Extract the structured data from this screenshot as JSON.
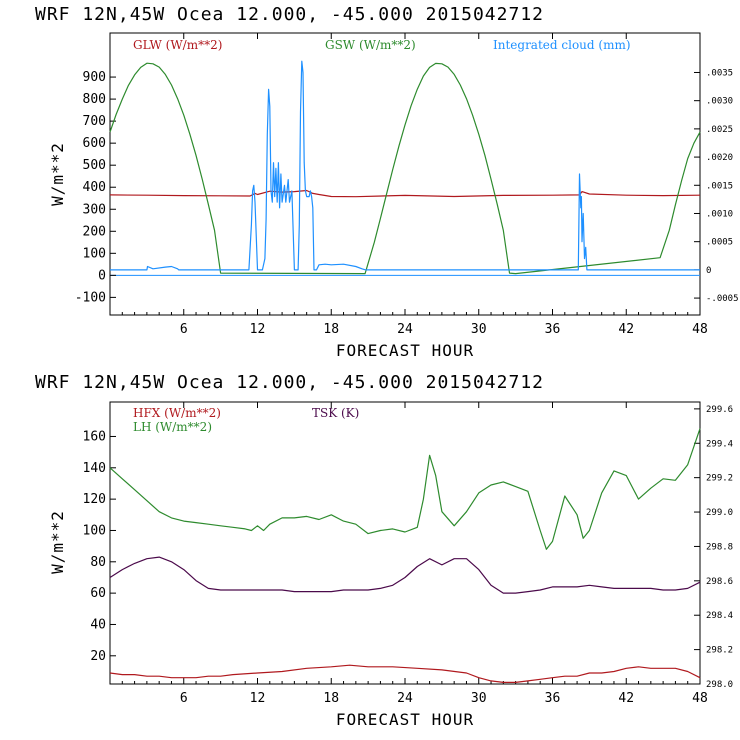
{
  "colors": {
    "red": "#b0191e",
    "green": "#2e8b2e",
    "blue": "#1e90ff",
    "purple": "#4b0a4b",
    "axis": "#000000"
  },
  "chart_data": [
    {
      "type": "line",
      "header": "WRF   12N,45W Ocea  12.000, -45.000  2015042712",
      "xlabel": "FORECAST HOUR",
      "ylabel": "W/m**2",
      "xlim": [
        0,
        48
      ],
      "ylim": [
        -180,
        1100
      ],
      "xticks": [
        "6",
        "12",
        "18",
        "24",
        "30",
        "36",
        "42",
        "48"
      ],
      "yticks": [
        "-100",
        "0",
        "100",
        "200",
        "300",
        "400",
        "500",
        "600",
        "700",
        "800",
        "900"
      ],
      "right_axis": {
        "ylim": [
          -0.0008,
          0.0042
        ],
        "ticks": [
          "-.0005",
          "0",
          ".0005",
          ".0010",
          ".0015",
          ".0020",
          ".0025",
          ".0030",
          ".0035"
        ]
      },
      "legend": [
        "GLW (W/m**2)",
        "GSW (W/m**2)",
        "Integrated cloud (mm)"
      ],
      "series": [
        {
          "name": "GLW (W/m**2)",
          "color": "red",
          "axis": "left",
          "x": [
            0,
            3,
            6,
            9,
            11.4,
            11.8,
            12,
            13,
            14,
            15,
            16,
            16.5,
            17,
            18,
            20,
            24,
            28,
            32,
            36,
            38.2,
            38.4,
            39,
            42,
            45,
            48
          ],
          "y": [
            365,
            364,
            362,
            361,
            360,
            372,
            367,
            382,
            378,
            380,
            385,
            372,
            367,
            358,
            357,
            363,
            358,
            363,
            364,
            365,
            380,
            369,
            364,
            362,
            364
          ]
        },
        {
          "name": "GSW (W/m**2)",
          "color": "green",
          "axis": "left",
          "x": [
            0,
            0.5,
            1,
            1.5,
            2,
            2.5,
            3,
            3.5,
            4,
            4.5,
            5,
            5.5,
            6,
            6.5,
            7,
            7.5,
            8,
            8.5,
            9,
            20.75,
            21.5,
            22,
            22.5,
            23,
            23.5,
            24,
            24.5,
            25,
            25.5,
            26,
            26.5,
            27,
            27.5,
            28,
            28.5,
            29,
            29.5,
            30,
            30.5,
            31,
            31.5,
            32,
            32.5,
            33,
            44.75,
            45.5,
            46,
            46.5,
            47,
            47.5,
            48
          ],
          "y": [
            650,
            730,
            800,
            862,
            910,
            944,
            963,
            960,
            945,
            912,
            864,
            802,
            727,
            640,
            545,
            437,
            323,
            205,
            10,
            8,
            150,
            258,
            370,
            480,
            586,
            683,
            770,
            845,
            905,
            944,
            962,
            960,
            945,
            912,
            864,
            802,
            727,
            640,
            545,
            437,
            323,
            205,
            10,
            8,
            80,
            205,
            320,
            430,
            530,
            600,
            650
          ]
        },
        {
          "name": "Integrated cloud (mm)",
          "color": "blue",
          "axis": "right",
          "x": [
            0,
            3,
            3.05,
            3.5,
            4.5,
            5,
            5.5,
            5.6,
            11.3,
            11.5,
            11.6,
            11.7,
            11.8,
            12,
            12.2,
            12.4,
            12.6,
            12.7,
            12.8,
            12.9,
            13,
            13.1,
            13.2,
            13.3,
            13.4,
            13.5,
            13.6,
            13.7,
            13.8,
            13.9,
            14,
            14.2,
            14.3,
            14.5,
            14.6,
            14.8,
            15,
            15.2,
            15.3,
            15.4,
            15.5,
            15.6,
            15.7,
            15.8,
            15.9,
            16,
            16.2,
            16.3,
            16.4,
            16.5,
            16.6,
            16.8,
            17,
            17.5,
            18,
            19,
            20,
            20.5,
            20.8,
            38.1,
            38.2,
            38.3,
            38.35,
            38.4,
            38.5,
            38.6,
            38.7,
            38.8,
            48
          ],
          "y": [
            0,
            0,
            6e-05,
            2e-05,
            5e-05,
            6e-05,
            2e-05,
            0,
            0,
            0.0008,
            0.0014,
            0.0015,
            0.0012,
            0,
            0,
            0,
            0.0002,
            0.0009,
            0.0024,
            0.0032,
            0.0029,
            0.0014,
            0.0012,
            0.0019,
            0.0013,
            0.0018,
            0.0012,
            0.0019,
            0.0011,
            0.0017,
            0.0012,
            0.0015,
            0.0012,
            0.0016,
            0.0012,
            0.0014,
            0,
            0,
            0,
            0.0008,
            0.0028,
            0.0037,
            0.0035,
            0.0019,
            0.0014,
            0.0013,
            0.0013,
            0.0014,
            0.0013,
            0.0011,
            0,
            0,
            9e-05,
            0.0001,
            9e-05,
            0.0001,
            6e-05,
            2e-05,
            0,
            0,
            0.0017,
            0.0011,
            0.0013,
            0.0005,
            0.001,
            0.0002,
            0.0004,
            0,
            0
          ]
        }
      ]
    },
    {
      "type": "line",
      "header": "WRF   12N,45W Ocea  12.000, -45.000  2015042712",
      "xlabel": "FORECAST HOUR",
      "ylabel": "W/m**2",
      "xlim": [
        0,
        48
      ],
      "ylim": [
        2,
        182
      ],
      "xticks": [
        "6",
        "12",
        "18",
        "24",
        "30",
        "36",
        "42",
        "48"
      ],
      "yticks": [
        "20",
        "40",
        "60",
        "80",
        "100",
        "120",
        "140",
        "160"
      ],
      "right_axis": {
        "ylim": [
          298.0,
          299.64
        ],
        "ticks": [
          "298.0",
          "298.2",
          "298.4",
          "298.6",
          "298.8",
          "299.0",
          "299.2",
          "299.4",
          "299.6"
        ]
      },
      "legend": [
        "HFX (W/m**2)",
        "LH (W/m**2)",
        "TSK (K)"
      ],
      "series": [
        {
          "name": "HFX (W/m**2)",
          "color": "red",
          "axis": "left",
          "x": [
            0,
            1,
            2,
            3,
            4,
            5,
            6,
            7,
            8,
            9,
            10,
            12,
            14,
            16,
            18,
            19.5,
            21,
            23,
            25,
            27,
            29,
            30,
            31,
            32,
            33,
            34,
            35,
            36,
            37,
            38,
            39,
            40,
            41,
            42,
            43,
            44,
            45,
            46,
            47,
            48
          ],
          "y": [
            9,
            8,
            8,
            7,
            7,
            6,
            6,
            6,
            7,
            7,
            8,
            9,
            10,
            12,
            13,
            14,
            13,
            13,
            12,
            11,
            9,
            6,
            4,
            3,
            3,
            4,
            5,
            6,
            7,
            7,
            9,
            9,
            10,
            12,
            13,
            12,
            12,
            12,
            10,
            6
          ]
        },
        {
          "name": "LH (W/m**2)",
          "color": "green",
          "axis": "left",
          "x": [
            0,
            1,
            2,
            3,
            4,
            5,
            6,
            7,
            8,
            9,
            10,
            11,
            11.5,
            12,
            12.5,
            13,
            14,
            15,
            16,
            17,
            18,
            19,
            20,
            21,
            22,
            23,
            24,
            25,
            25.5,
            26,
            26.5,
            27,
            28,
            29,
            30,
            31,
            32,
            33,
            34,
            35,
            35.5,
            36,
            37,
            38,
            38.5,
            39,
            40,
            41,
            42,
            43,
            44,
            45,
            46,
            47,
            48
          ],
          "y": [
            140,
            133,
            126,
            119,
            112,
            108,
            106,
            105,
            104,
            103,
            102,
            101,
            100,
            103,
            100,
            104,
            108,
            108,
            109,
            107,
            110,
            106,
            104,
            98,
            100,
            101,
            99,
            102,
            120,
            148,
            135,
            112,
            103,
            112,
            124,
            129,
            131,
            128,
            125,
            100,
            88,
            93,
            122,
            110,
            95,
            100,
            124,
            138,
            135,
            120,
            127,
            133,
            132,
            142,
            165
          ]
        },
        {
          "name": "TSK (K)",
          "color": "purple",
          "axis": "left",
          "x": [
            0,
            1,
            2,
            3,
            4,
            5,
            6,
            7,
            8,
            9,
            10,
            11,
            12,
            13,
            14,
            15,
            16,
            17,
            18,
            19,
            20,
            21,
            22,
            23,
            24,
            25,
            26,
            27,
            28,
            29,
            30,
            31,
            32,
            33,
            34,
            35,
            36,
            37,
            38,
            39,
            40,
            41,
            42,
            43,
            44,
            45,
            46,
            47,
            48
          ],
          "y": [
            70,
            75,
            79,
            82,
            83,
            80,
            75,
            68,
            63,
            62,
            62,
            62,
            62,
            62,
            62,
            61,
            61,
            61,
            61,
            62,
            62,
            62,
            63,
            65,
            70,
            77,
            82,
            78,
            82,
            82,
            75,
            65,
            60,
            60,
            61,
            62,
            64,
            64,
            64,
            65,
            64,
            63,
            63,
            63,
            63,
            62,
            62,
            63,
            67
          ]
        }
      ]
    }
  ]
}
